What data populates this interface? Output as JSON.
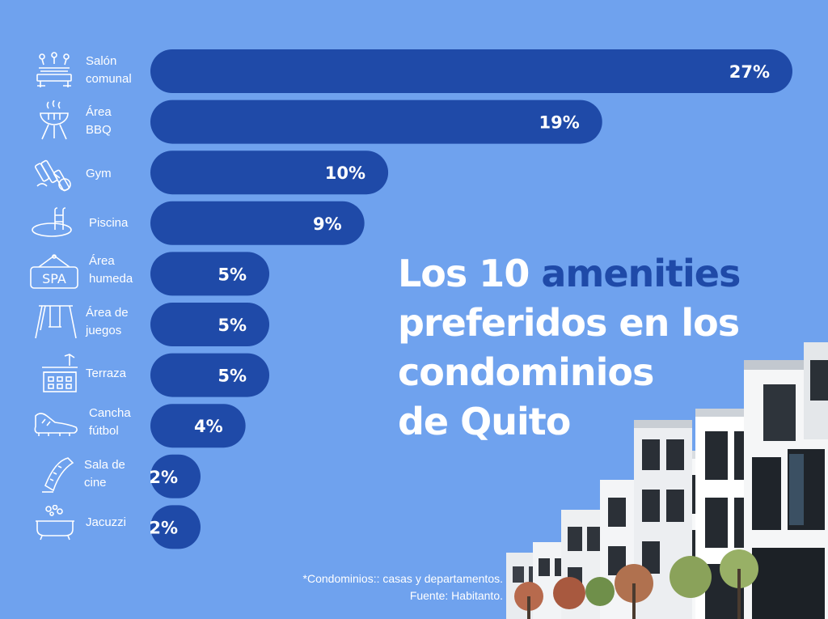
{
  "title": {
    "part1": "Los 10 ",
    "accent": "amenities",
    "part2": "preferidos en los",
    "part3": "condominios",
    "part4": "de Quito"
  },
  "footnote": {
    "line1": "*Condominios:: casas y departamentos.",
    "line2": "Fuente: Habitanto."
  },
  "colors": {
    "background": "#6fa2ee",
    "bar": "#1f4aa8",
    "accent_text": "#1f4aa8",
    "label_text": "#ffffff"
  },
  "chart_data": {
    "type": "bar",
    "orientation": "horizontal",
    "categories": [
      "Salón\ncomunal",
      "Área\nBBQ",
      "Gym",
      "Piscina",
      "Área\nhumeda",
      "Área de\njuegos",
      "Terraza",
      "Cancha\nfútbol",
      "Sala de\ncine",
      "Jacuzzi"
    ],
    "icons": [
      "party-table-icon",
      "bbq-grill-icon",
      "dumbbell-icon",
      "pool-icon",
      "spa-sign-icon",
      "swing-icon",
      "rooftop-terrace-icon",
      "football-boot-icon",
      "film-strip-icon",
      "bathtub-icon"
    ],
    "values": [
      27,
      19,
      10,
      9,
      5,
      5,
      5,
      4,
      2,
      2
    ],
    "value_labels": [
      "27%",
      "19%",
      "10%",
      "9%",
      "5%",
      "5%",
      "5%",
      "4%",
      "2%",
      "2%"
    ],
    "xlim": [
      0,
      27
    ],
    "grid": false,
    "legend": "none"
  }
}
